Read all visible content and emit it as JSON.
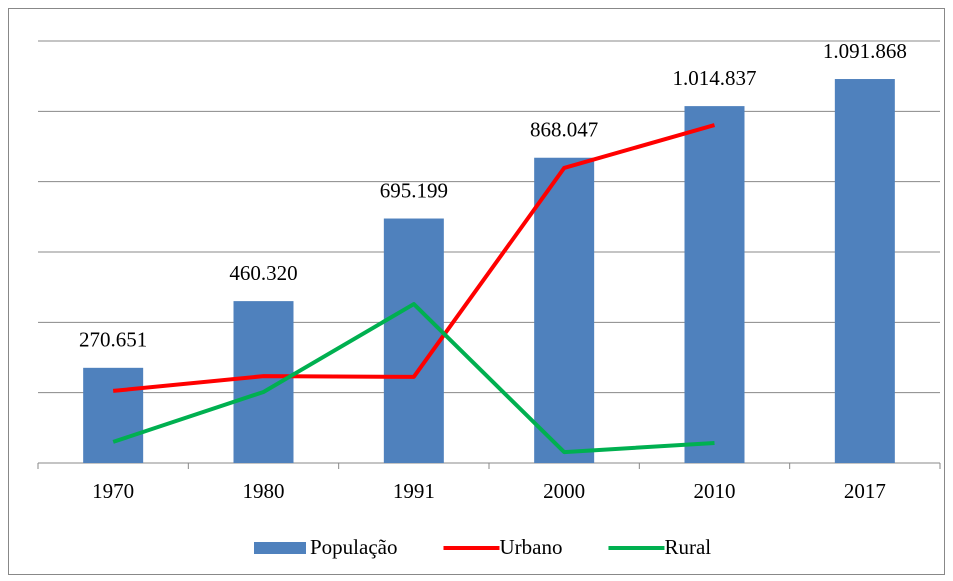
{
  "chart_data": {
    "type": "bar",
    "categories": [
      "1970",
      "1980",
      "1991",
      "2000",
      "2010",
      "2017"
    ],
    "ylim": [
      0,
      1200000
    ],
    "yticks": [
      0,
      200000,
      400000,
      600000,
      800000,
      1000000,
      1200000
    ],
    "grid": true,
    "legend": "bottom",
    "series": [
      {
        "name": "População",
        "type": "bar",
        "color": "#4f81bd",
        "values": [
          270651,
          460320,
          695199,
          868047,
          1014837,
          1091868
        ],
        "value_labels": [
          "270.651",
          "460.320",
          "695.199",
          "868.047",
          "1.014.837",
          "1.091.868"
        ]
      },
      {
        "name": "Urbano",
        "type": "line",
        "color": "#ff0000",
        "values": [
          205000,
          247000,
          245000,
          839000,
          961000,
          null
        ]
      },
      {
        "name": "Rural",
        "type": "line",
        "color": "#00b050",
        "values": [
          60000,
          202000,
          452000,
          31000,
          57000,
          null
        ]
      }
    ]
  }
}
